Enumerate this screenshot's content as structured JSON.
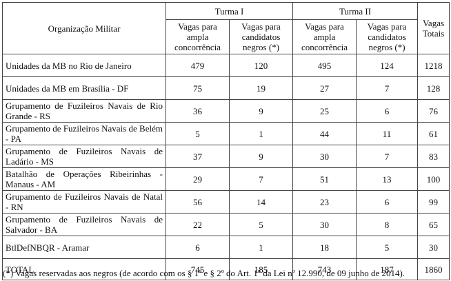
{
  "table": {
    "headers": {
      "org": "Organização Militar",
      "turma1": "Turma I",
      "turma2": "Turma II",
      "total": "Vagas Totais",
      "ampla": "Vagas para ampla concorrência",
      "negros": "Vagas para candidatos negros (*)"
    },
    "rows": [
      {
        "org": "Unidades da MB no Rio de Janeiro",
        "t1_ampla": "479",
        "t1_negros": "120",
        "t2_ampla": "495",
        "t2_negros": "124",
        "total": "1218"
      },
      {
        "org": "Unidades da MB em Brasília - DF",
        "t1_ampla": "75",
        "t1_negros": "19",
        "t2_ampla": "27",
        "t2_negros": "7",
        "total": "128"
      },
      {
        "org": "Grupamento de Fuzileiros Navais de Rio Grande - RS",
        "t1_ampla": "36",
        "t1_negros": "9",
        "t2_ampla": "25",
        "t2_negros": "6",
        "total": "76"
      },
      {
        "org": "Grupamento de Fuzileiros Navais de Belém - PA",
        "t1_ampla": "5",
        "t1_negros": "1",
        "t2_ampla": "44",
        "t2_negros": "11",
        "total": "61"
      },
      {
        "org": "Grupamento de Fuzileiros Navais de Ladário - MS",
        "t1_ampla": "37",
        "t1_negros": "9",
        "t2_ampla": "30",
        "t2_negros": "7",
        "total": "83"
      },
      {
        "org": "Batalhão de Operações Ribeirinhas - Manaus - AM",
        "t1_ampla": "29",
        "t1_negros": "7",
        "t2_ampla": "51",
        "t2_negros": "13",
        "total": "100"
      },
      {
        "org": "Grupamento de Fuzileiros Navais de Natal - RN",
        "t1_ampla": "56",
        "t1_negros": "14",
        "t2_ampla": "23",
        "t2_negros": "6",
        "total": "99"
      },
      {
        "org": "Grupamento de Fuzileiros Navais de Salvador - BA",
        "t1_ampla": "22",
        "t1_negros": "5",
        "t2_ampla": "30",
        "t2_negros": "8",
        "total": "65"
      },
      {
        "org": "BtlDefNBQR - Aramar",
        "t1_ampla": "6",
        "t1_negros": "1",
        "t2_ampla": "18",
        "t2_negros": "5",
        "total": "30"
      },
      {
        "org": "TOTAL",
        "t1_ampla": "745",
        "t1_negros": "185",
        "t2_ampla": "743",
        "t2_negros": "187",
        "total": "1860"
      }
    ]
  },
  "footnote": "(*) Vagas reservadas aos negros (de acordo com os § 1º e § 2º do Art. 1º da Lei nº 12.990, de 09 junho de 2014)."
}
